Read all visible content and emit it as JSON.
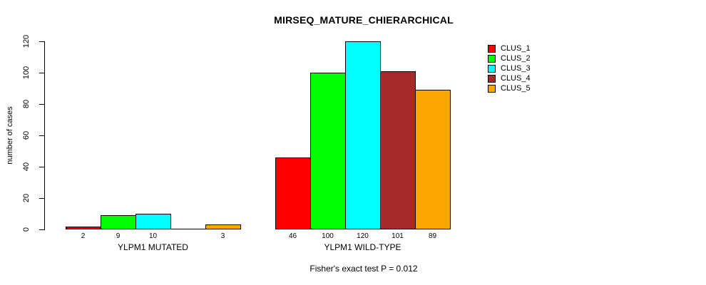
{
  "title": "MIRSEQ_MATURE_CHIERARCHICAL",
  "footer": "Fisher's exact test P = 0.012",
  "chart_data": {
    "type": "bar",
    "title": "MIRSEQ_MATURE_CHIERARCHICAL",
    "ylabel": "number of cases",
    "xlabel": "",
    "ylim": [
      0,
      120
    ],
    "yticks": [
      0,
      20,
      40,
      60,
      80,
      100,
      120
    ],
    "grid": false,
    "legend_position": "right",
    "series": [
      {
        "name": "CLUS_1",
        "color": "#ff0000"
      },
      {
        "name": "CLUS_2",
        "color": "#00ff00"
      },
      {
        "name": "CLUS_3",
        "color": "#00ffff"
      },
      {
        "name": "CLUS_4",
        "color": "#a52a2a"
      },
      {
        "name": "CLUS_5",
        "color": "#ffa500"
      }
    ],
    "groups": [
      {
        "label": "YLPM1 MUTATED",
        "values": [
          2,
          9,
          10,
          0,
          3
        ],
        "bar_labels": [
          "2",
          "9",
          "10",
          "",
          "3"
        ]
      },
      {
        "label": "YLPM1 WILD-TYPE",
        "values": [
          46,
          100,
          120,
          101,
          89
        ],
        "bar_labels": [
          "46",
          "100",
          "120",
          "101",
          "89"
        ]
      }
    ],
    "annotation": "Fisher's exact test P = 0.012"
  }
}
